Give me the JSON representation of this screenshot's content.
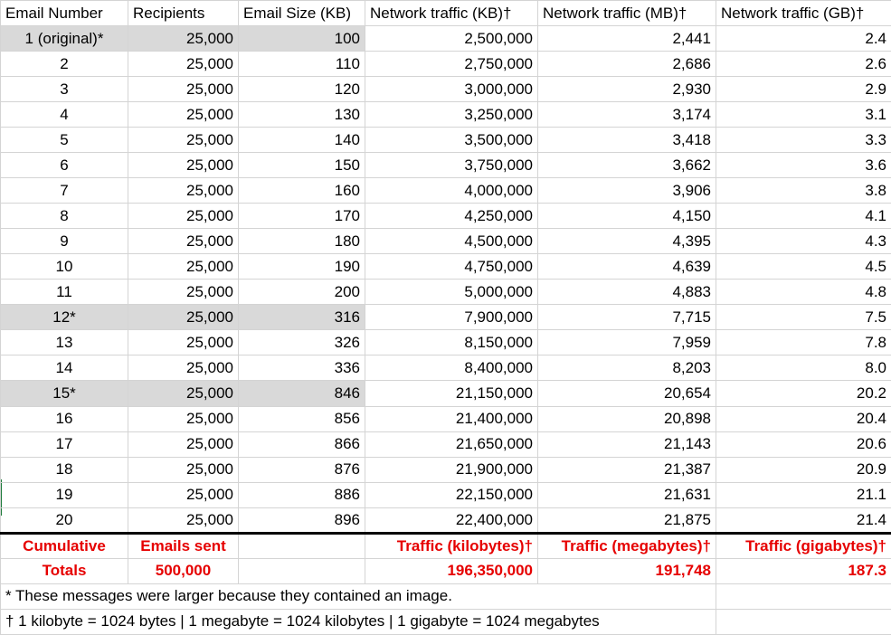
{
  "headers": [
    "Email Number",
    "Recipients",
    "Email Size (KB)",
    "Network traffic (KB)†",
    "Network traffic (MB)†",
    "Network traffic (GB)†"
  ],
  "rows": [
    {
      "n": "1 (original)*",
      "recipients": "25,000",
      "size": "100",
      "kb": "2,500,000",
      "mb": "2,441",
      "gb": "2.4",
      "highlight": true
    },
    {
      "n": "2",
      "recipients": "25,000",
      "size": "110",
      "kb": "2,750,000",
      "mb": "2,686",
      "gb": "2.6",
      "highlight": false
    },
    {
      "n": "3",
      "recipients": "25,000",
      "size": "120",
      "kb": "3,000,000",
      "mb": "2,930",
      "gb": "2.9",
      "highlight": false
    },
    {
      "n": "4",
      "recipients": "25,000",
      "size": "130",
      "kb": "3,250,000",
      "mb": "3,174",
      "gb": "3.1",
      "highlight": false
    },
    {
      "n": "5",
      "recipients": "25,000",
      "size": "140",
      "kb": "3,500,000",
      "mb": "3,418",
      "gb": "3.3",
      "highlight": false
    },
    {
      "n": "6",
      "recipients": "25,000",
      "size": "150",
      "kb": "3,750,000",
      "mb": "3,662",
      "gb": "3.6",
      "highlight": false
    },
    {
      "n": "7",
      "recipients": "25,000",
      "size": "160",
      "kb": "4,000,000",
      "mb": "3,906",
      "gb": "3.8",
      "highlight": false
    },
    {
      "n": "8",
      "recipients": "25,000",
      "size": "170",
      "kb": "4,250,000",
      "mb": "4,150",
      "gb": "4.1",
      "highlight": false
    },
    {
      "n": "9",
      "recipients": "25,000",
      "size": "180",
      "kb": "4,500,000",
      "mb": "4,395",
      "gb": "4.3",
      "highlight": false
    },
    {
      "n": "10",
      "recipients": "25,000",
      "size": "190",
      "kb": "4,750,000",
      "mb": "4,639",
      "gb": "4.5",
      "highlight": false
    },
    {
      "n": "11",
      "recipients": "25,000",
      "size": "200",
      "kb": "5,000,000",
      "mb": "4,883",
      "gb": "4.8",
      "highlight": false
    },
    {
      "n": "12*",
      "recipients": "25,000",
      "size": "316",
      "kb": "7,900,000",
      "mb": "7,715",
      "gb": "7.5",
      "highlight": true
    },
    {
      "n": "13",
      "recipients": "25,000",
      "size": "326",
      "kb": "8,150,000",
      "mb": "7,959",
      "gb": "7.8",
      "highlight": false
    },
    {
      "n": "14",
      "recipients": "25,000",
      "size": "336",
      "kb": "8,400,000",
      "mb": "8,203",
      "gb": "8.0",
      "highlight": false
    },
    {
      "n": "15*",
      "recipients": "25,000",
      "size": "846",
      "kb": "21,150,000",
      "mb": "20,654",
      "gb": "20.2",
      "highlight": true
    },
    {
      "n": "16",
      "recipients": "25,000",
      "size": "856",
      "kb": "21,400,000",
      "mb": "20,898",
      "gb": "20.4",
      "highlight": false
    },
    {
      "n": "17",
      "recipients": "25,000",
      "size": "866",
      "kb": "21,650,000",
      "mb": "21,143",
      "gb": "20.6",
      "highlight": false
    },
    {
      "n": "18",
      "recipients": "25,000",
      "size": "876",
      "kb": "21,900,000",
      "mb": "21,387",
      "gb": "20.9",
      "highlight": false
    },
    {
      "n": "19",
      "recipients": "25,000",
      "size": "886",
      "kb": "22,150,000",
      "mb": "21,631",
      "gb": "21.1",
      "highlight": false
    },
    {
      "n": "20",
      "recipients": "25,000",
      "size": "896",
      "kb": "22,400,000",
      "mb": "21,875",
      "gb": "21.4",
      "highlight": false
    }
  ],
  "totals": {
    "label1": "Cumulative",
    "label2": "Totals",
    "emails_label": "Emails sent",
    "emails_value": "500,000",
    "kb_label": "Traffic (kilobytes)†",
    "kb_value": "196,350,000",
    "mb_label": "Traffic (megabytes)†",
    "mb_value": "191,748",
    "gb_label": "Traffic (gigabytes)†",
    "gb_value": "187.3"
  },
  "notes": {
    "image_note": "* These messages were larger because they contained an image.",
    "units_note": "† 1 kilobyte = 1024 bytes | 1 megabyte = 1024 kilobytes | 1 gigabyte = 1024 megabytes"
  },
  "colors": {
    "totals_text": "#e60000",
    "highlight_fill": "#d9d9d9",
    "grid": "#d4d4d4"
  }
}
